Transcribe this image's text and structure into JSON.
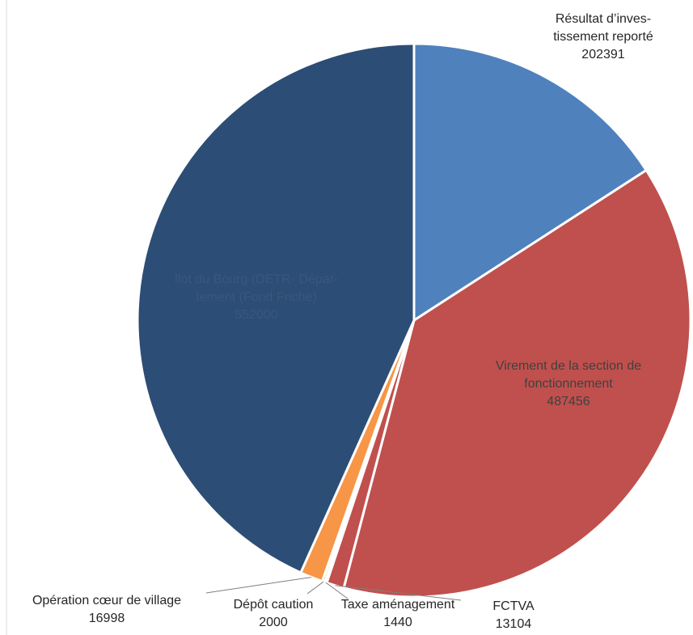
{
  "chart_data": {
    "type": "pie",
    "title": "",
    "slices": [
      {
        "label_lines": [
          "Résultat d’inves-",
          "tissement reporté"
        ],
        "value": 202391,
        "value_text": "202391",
        "color": "#4f81bd",
        "label_color": "#262626"
      },
      {
        "label_lines": [
          "Virement de la section de",
          "fonctionnement"
        ],
        "value": 487456,
        "value_text": "487456",
        "color": "#c0504d",
        "label_color": "#404040"
      },
      {
        "label_lines": [
          "FCTVA"
        ],
        "value": 13104,
        "value_text": "13104",
        "color": "#c0504d",
        "label_color": "#262626"
      },
      {
        "label_lines": [
          "Taxe aménagement"
        ],
        "value": 1440,
        "value_text": "1440",
        "color": "#1f497d",
        "label_color": "#262626"
      },
      {
        "label_lines": [
          "Dépôt caution"
        ],
        "value": 2000,
        "value_text": "2000",
        "color": "#9bbb59",
        "label_color": "#262626"
      },
      {
        "label_lines": [
          "Opération cœur de village"
        ],
        "value": 16998,
        "value_text": "16998",
        "color": "#f79646",
        "label_color": "#262626"
      },
      {
        "label_lines": [
          "Ilot du Bourg (DETR- Dépar-",
          "tement (Fond Friche)"
        ],
        "value": 552000,
        "value_text": "552000",
        "color": "#2c4d75",
        "label_color": "#3a5680"
      }
    ]
  }
}
